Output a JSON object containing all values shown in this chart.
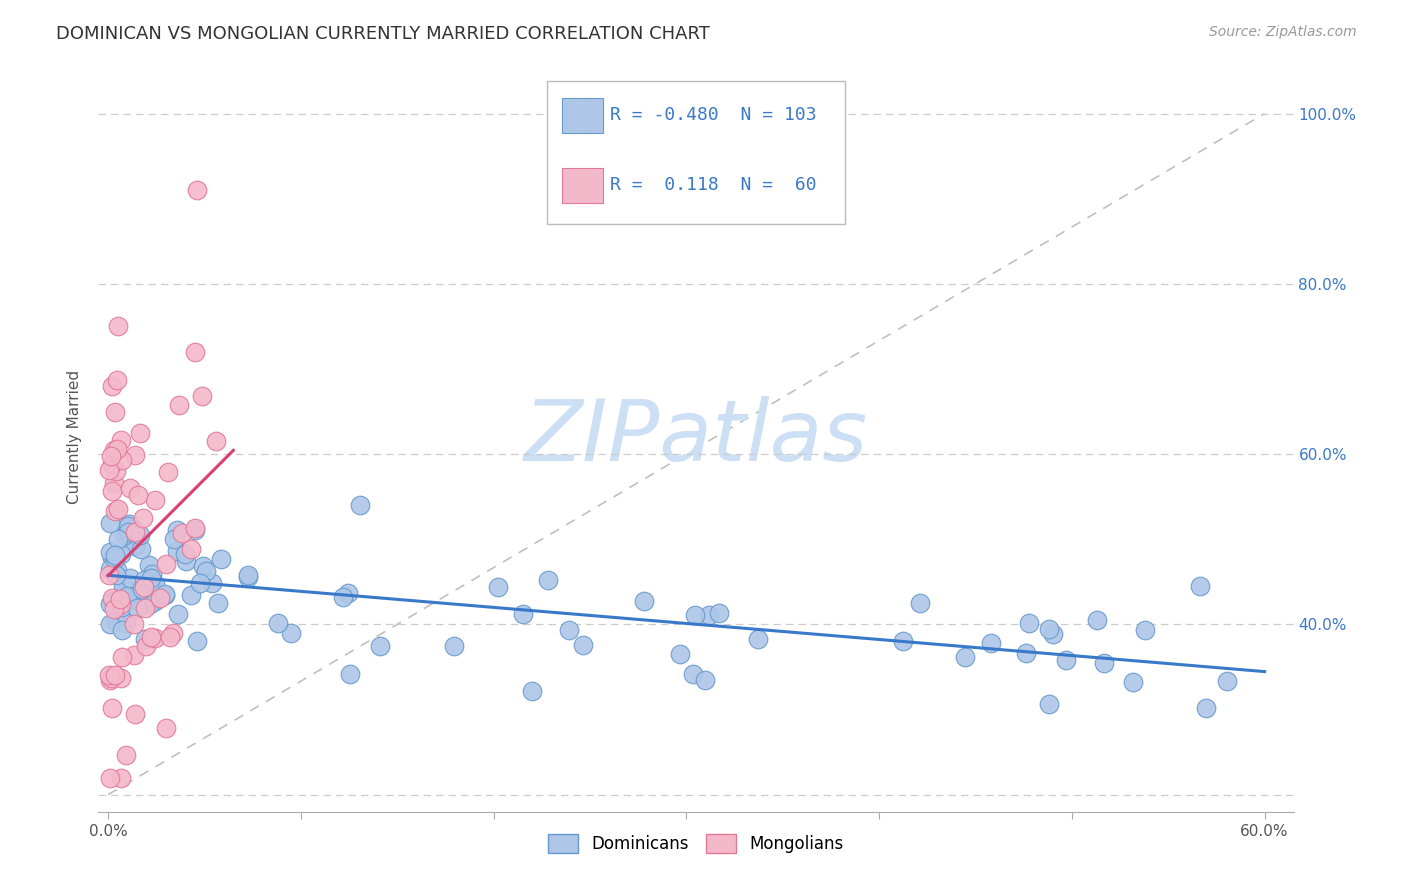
{
  "title": "DOMINICAN VS MONGOLIAN CURRENTLY MARRIED CORRELATION CHART",
  "source_text": "Source: ZipAtlas.com",
  "ylabel": "Currently Married",
  "xlim": [
    -0.005,
    0.615
  ],
  "ylim": [
    0.18,
    1.06
  ],
  "yticks_right": [
    0.4,
    0.6,
    0.8,
    1.0
  ],
  "yticklabels_right": [
    "40.0%",
    "60.0%",
    "80.0%",
    "100.0%"
  ],
  "xtick_positions": [
    0.0,
    0.1,
    0.2,
    0.3,
    0.4,
    0.5,
    0.6
  ],
  "dominican_color": "#aec6e8",
  "dominican_edge": "#6699cc",
  "mongolian_color": "#f4b8cb",
  "mongolian_edge": "#e07898",
  "trend_blue_color": "#3a78c9",
  "trend_pink_color": "#d94070",
  "watermark_color": "#ccdff5",
  "grid_color": "#cccccc",
  "diag_color": "#c0c0c0",
  "legend_R1": "-0.480",
  "legend_N1": "103",
  "legend_R2": "0.118",
  "legend_N2": "60",
  "title_fontsize": 13,
  "source_fontsize": 10,
  "tick_fontsize": 11,
  "ylabel_fontsize": 11
}
